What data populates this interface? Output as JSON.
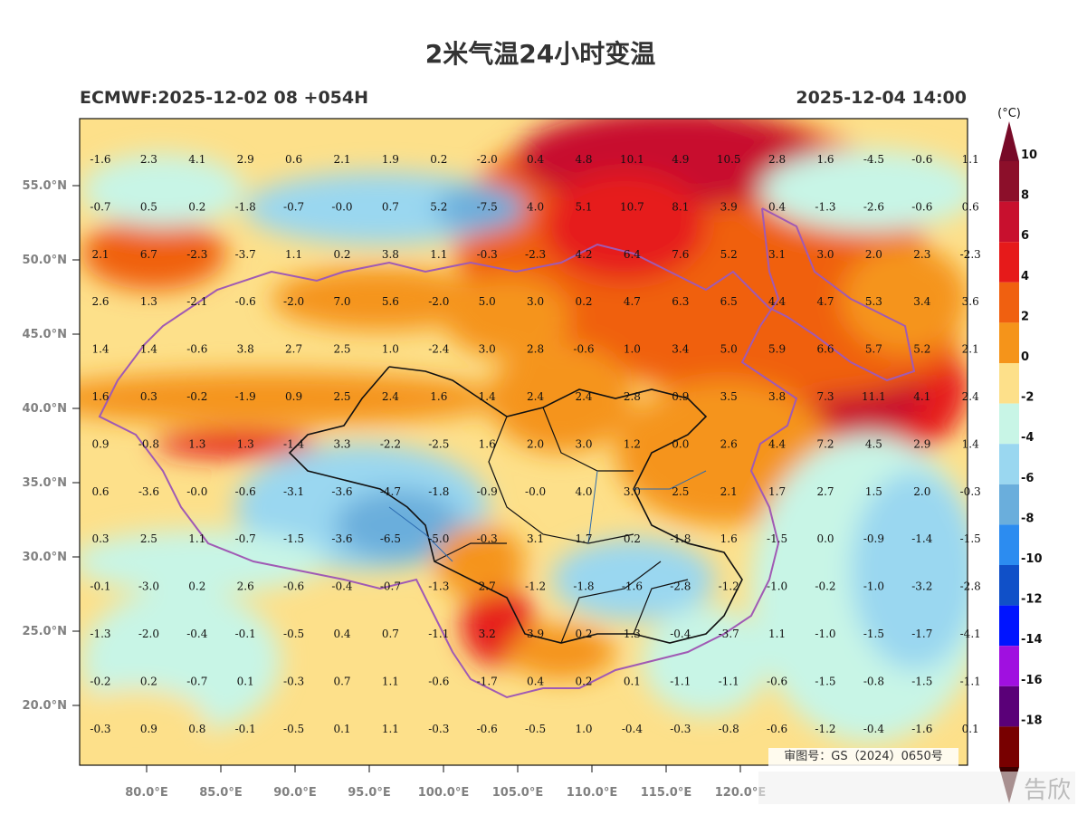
{
  "title": "2米气温24小时变温",
  "subtitle_left": "ECMWF:2025-12-02 08 +054H",
  "subtitle_right": "2025-12-04 14:00",
  "unit_label": "(°C)",
  "map_notice": "审图号：GS（2024）0650号",
  "watermark": "告欣",
  "lat_ticks": [
    "55.0°N",
    "50.0°N",
    "45.0°N",
    "40.0°N",
    "35.0°N",
    "30.0°N",
    "25.0°N",
    "20.0°N"
  ],
  "lon_ticks": [
    "80.0°E",
    "85.0°E",
    "90.0°E",
    "95.0°E",
    "100.0°E",
    "105.0°E",
    "110.0°E",
    "115.0°E",
    "120.0°E"
  ],
  "colorbar": {
    "labels": [
      "10",
      "8",
      "6",
      "4",
      "2",
      "0",
      "-2",
      "-4",
      "-6",
      "-8",
      "-10",
      "-12",
      "-14",
      "-16",
      "-18"
    ],
    "colors": [
      "#8c0f2a",
      "#c8102e",
      "#e61a1a",
      "#f06010",
      "#f5941a",
      "#fde08a",
      "#c8f5e6",
      "#9ad7f0",
      "#6aaedc",
      "#2c8cf0",
      "#1050c8",
      "#0014ff",
      "#a010e0",
      "#5a0078",
      "#780000"
    ]
  },
  "grid_values": [
    [
      "-1.6",
      "2.3",
      "4.1",
      "2.9",
      "0.6",
      "2.1",
      "1.9",
      "0.2",
      "-2.0",
      "0.4",
      "4.8",
      "10.1",
      "4.9",
      "10.5",
      "2.8",
      "1.6",
      "-4.5",
      "-0.6",
      "1.1"
    ],
    [
      "-0.7",
      "0.5",
      "0.2",
      "-1.8",
      "-0.7",
      "-0.0",
      "0.7",
      "5.2",
      "-7.5",
      "4.0",
      "5.1",
      "10.7",
      "8.1",
      "3.9",
      "0.4",
      "-1.3",
      "-2.6",
      "-0.6",
      "0.6"
    ],
    [
      "2.1",
      "6.7",
      "-2.3",
      "-3.7",
      "1.1",
      "0.2",
      "3.8",
      "1.1",
      "-0.3",
      "-2.3",
      "4.2",
      "6.4",
      "7.6",
      "5.2",
      "3.1",
      "3.0",
      "2.0",
      "2.3",
      "-2.3"
    ],
    [
      "2.6",
      "1.3",
      "-2.1",
      "-0.6",
      "-2.0",
      "7.0",
      "5.6",
      "-2.0",
      "5.0",
      "3.0",
      "0.2",
      "4.7",
      "6.3",
      "6.5",
      "4.4",
      "4.7",
      "5.3",
      "3.4",
      "3.6"
    ],
    [
      "1.4",
      "1.4",
      "-0.6",
      "3.8",
      "2.7",
      "2.5",
      "1.0",
      "-2.4",
      "3.0",
      "2.8",
      "-0.6",
      "1.0",
      "3.4",
      "5.0",
      "5.9",
      "6.6",
      "5.7",
      "5.2",
      "2.1"
    ],
    [
      "1.6",
      "0.3",
      "-0.2",
      "-1.9",
      "0.9",
      "2.5",
      "2.4",
      "1.6",
      "1.4",
      "2.4",
      "2.4",
      "2.8",
      "0.9",
      "3.5",
      "3.8",
      "7.3",
      "11.1",
      "4.1",
      "2.4"
    ],
    [
      "0.9",
      "-0.8",
      "1.3",
      "1.3",
      "-1.4",
      "3.3",
      "-2.2",
      "-2.5",
      "1.6",
      "2.0",
      "3.0",
      "1.2",
      "0.0",
      "2.6",
      "4.4",
      "7.2",
      "4.5",
      "2.9",
      "1.4"
    ],
    [
      "0.6",
      "-3.6",
      "-0.0",
      "-0.6",
      "-3.1",
      "-3.6",
      "-4.7",
      "-1.8",
      "-0.9",
      "-0.0",
      "4.0",
      "3.0",
      "2.5",
      "2.1",
      "1.7",
      "2.7",
      "1.5",
      "2.0",
      "-0.3"
    ],
    [
      "0.3",
      "2.5",
      "1.1",
      "-0.7",
      "-1.5",
      "-3.6",
      "-6.5",
      "-5.0",
      "-0.3",
      "3.1",
      "1.7",
      "0.2",
      "-1.8",
      "1.6",
      "-1.5",
      "0.0",
      "-0.9",
      "-1.4",
      "-1.5"
    ],
    [
      "-0.1",
      "-3.0",
      "0.2",
      "2.6",
      "-0.6",
      "-0.4",
      "-0.7",
      "-1.3",
      "2.7",
      "-1.2",
      "-1.8",
      "-1.6",
      "-2.8",
      "-1.2",
      "-1.0",
      "-0.2",
      "-1.0",
      "-3.2",
      "-2.8"
    ],
    [
      "-1.3",
      "-2.0",
      "-0.4",
      "-0.1",
      "-0.5",
      "0.4",
      "0.7",
      "-1.1",
      "3.2",
      "3.9",
      "0.2",
      "1.3",
      "-0.4",
      "-3.7",
      "1.1",
      "-1.0",
      "-1.5",
      "-1.7",
      "-4.1"
    ],
    [
      "-0.2",
      "0.2",
      "-0.7",
      "0.1",
      "-0.3",
      "0.7",
      "1.1",
      "-0.6",
      "-1.7",
      "0.4",
      "0.2",
      "0.1",
      "-1.1",
      "-1.1",
      "-0.6",
      "-1.5",
      "-0.8",
      "-1.5",
      "-1.1"
    ],
    [
      "-0.3",
      "0.9",
      "0.8",
      "-0.1",
      "-0.5",
      "0.1",
      "1.1",
      "-0.3",
      "-0.6",
      "-0.5",
      "1.0",
      "-0.4",
      "-0.3",
      "-0.8",
      "-0.6",
      "-1.2",
      "-0.4",
      "-1.6",
      "0.1"
    ]
  ]
}
